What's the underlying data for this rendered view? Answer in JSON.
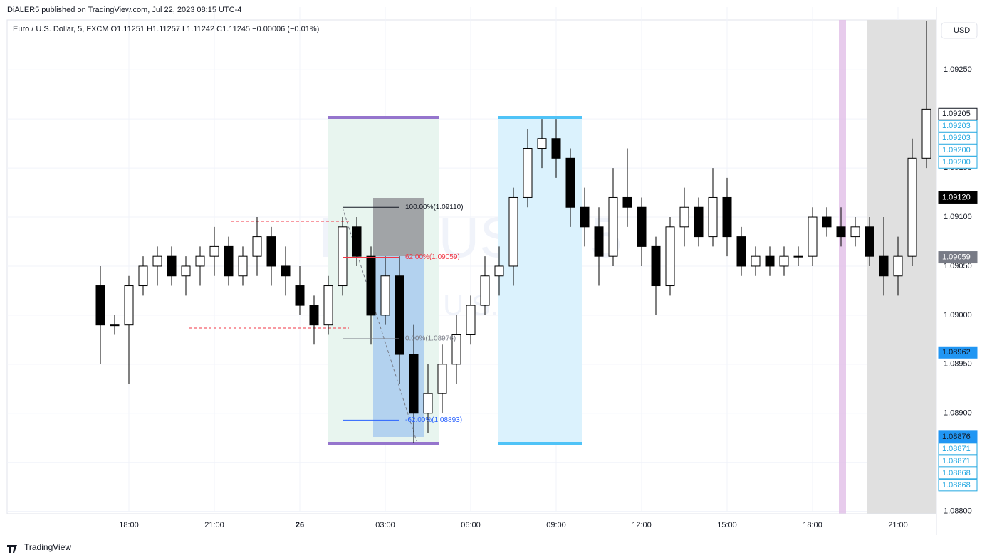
{
  "header": {
    "published": "DiALER5 published on TradingView.com, Jul 22, 2023 08:15 UTC-4",
    "symbol_line": "Euro / U.S. Dollar, 5, FXCM  O1.11251  H1.11257  L1.11242  C1.11245  −0.00006 (−0.01%)",
    "currency_button": "USD"
  },
  "footer": {
    "brand": "TradingView"
  },
  "chart_data": {
    "type": "candlestick",
    "watermark": "EURUSD, 5",
    "watermark_subtitle": "Euro / U.S. Dollar",
    "up_color": "#ffffff",
    "down_color": "#000000",
    "wick_color": "#000000",
    "grid": true,
    "xlim": [
      13.725,
      46.35
    ],
    "ylim": [
      1.08799,
      1.09314
    ],
    "xticks": [
      {
        "value": 18,
        "label": "18:00"
      },
      {
        "value": 21,
        "label": "21:00"
      },
      {
        "value": 24,
        "label": "26"
      },
      {
        "value": 27,
        "label": "03:00"
      },
      {
        "value": 30,
        "label": "06:00"
      },
      {
        "value": 33,
        "label": "09:00"
      },
      {
        "value": 36,
        "label": "12:00"
      },
      {
        "value": 39,
        "label": "15:00"
      },
      {
        "value": 42,
        "label": "18:00"
      },
      {
        "value": 45,
        "label": "21:00"
      }
    ],
    "yticks": [
      {
        "value": 1.088,
        "label": "1.08800"
      },
      {
        "value": 1.0885,
        "label": "1.08850"
      },
      {
        "value": 1.089,
        "label": "1.08900"
      },
      {
        "value": 1.0895,
        "label": "1.08950"
      },
      {
        "value": 1.09,
        "label": "1.09000"
      },
      {
        "value": 1.0905,
        "label": "1.09050"
      },
      {
        "value": 1.091,
        "label": "1.09100"
      },
      {
        "value": 1.0915,
        "label": "1.09150"
      },
      {
        "value": 1.092,
        "label": "1.09200"
      },
      {
        "value": 1.0925,
        "label": "1.09250"
      }
    ],
    "x": [
      17,
      17.5,
      18,
      18.5,
      19,
      19.5,
      20,
      20.5,
      21,
      21.5,
      22,
      22.5,
      23,
      23.5,
      24,
      24.5,
      25,
      25.5,
      26,
      26.5,
      27,
      27.5,
      28,
      28.5,
      29,
      29.5,
      30,
      30.5,
      31,
      31.5,
      32,
      32.5,
      33,
      33.5,
      34,
      34.5,
      35,
      35.5,
      36,
      36.5,
      37,
      37.5,
      38,
      38.5,
      39,
      39.5,
      40,
      40.5,
      41,
      41.5,
      42,
      42.5,
      43,
      43.5,
      44,
      44.5,
      45,
      45.5,
      46
    ],
    "open": [
      1.0903,
      1.0899,
      1.0899,
      1.0903,
      1.0905,
      1.0906,
      1.0904,
      1.0905,
      1.0906,
      1.0907,
      1.0904,
      1.0906,
      1.0908,
      1.0905,
      1.0903,
      1.0901,
      1.0899,
      1.0903,
      1.0909,
      1.0906,
      1.09,
      1.0904,
      1.0896,
      1.089,
      1.0892,
      1.0895,
      1.0898,
      1.0901,
      1.0904,
      1.0905,
      1.0912,
      1.0917,
      1.0918,
      1.0916,
      1.0911,
      1.0909,
      1.0906,
      1.0912,
      1.0911,
      1.0907,
      1.0903,
      1.0909,
      1.0911,
      1.0908,
      1.0912,
      1.0908,
      1.0905,
      1.0906,
      1.0905,
      1.0906,
      1.0906,
      1.091,
      1.0909,
      1.0908,
      1.0909,
      1.0906,
      1.0904,
      1.0906,
      1.0916
    ],
    "high": [
      1.0905,
      1.09,
      1.0904,
      1.0906,
      1.0907,
      1.0907,
      1.0906,
      1.0907,
      1.0909,
      1.0908,
      1.0907,
      1.091,
      1.0909,
      1.0907,
      1.0905,
      1.0902,
      1.0904,
      1.091,
      1.091,
      1.0907,
      1.0906,
      1.0906,
      1.0899,
      1.0895,
      1.0897,
      1.09,
      1.0902,
      1.0906,
      1.0907,
      1.0913,
      1.0919,
      1.092,
      1.092,
      1.0917,
      1.0913,
      1.0911,
      1.0915,
      1.0917,
      1.0912,
      1.0908,
      1.091,
      1.0913,
      1.0912,
      1.0915,
      1.0914,
      1.0909,
      1.0907,
      1.0907,
      1.0907,
      1.0907,
      1.0911,
      1.0911,
      1.0911,
      1.091,
      1.091,
      1.091,
      1.0908,
      1.0918,
      1.093
    ],
    "low": [
      1.0895,
      1.0898,
      1.0893,
      1.0902,
      1.0903,
      1.0903,
      1.0902,
      1.0903,
      1.0904,
      1.0903,
      1.0903,
      1.0904,
      1.0903,
      1.0902,
      1.09,
      1.0897,
      1.0898,
      1.0902,
      1.0905,
      1.0897,
      1.0899,
      1.0893,
      1.0887,
      1.0888,
      1.089,
      1.0893,
      1.0897,
      1.09,
      1.0902,
      1.0903,
      1.0911,
      1.0915,
      1.0914,
      1.0909,
      1.0907,
      1.0903,
      1.0905,
      1.0909,
      1.0905,
      1.09,
      1.0902,
      1.0907,
      1.0907,
      1.0907,
      1.0906,
      1.0904,
      1.0904,
      1.0904,
      1.0904,
      1.0905,
      1.0905,
      1.0908,
      1.0907,
      1.0907,
      1.0905,
      1.0902,
      1.0902,
      1.0905,
      1.0915
    ],
    "close": [
      1.0899,
      1.0899,
      1.0903,
      1.0905,
      1.0906,
      1.0904,
      1.0905,
      1.0906,
      1.0907,
      1.0904,
      1.0906,
      1.0908,
      1.0905,
      1.0904,
      1.0901,
      1.0899,
      1.0903,
      1.0909,
      1.0906,
      1.09,
      1.0904,
      1.0896,
      1.089,
      1.0892,
      1.0895,
      1.0898,
      1.0901,
      1.0904,
      1.0905,
      1.0912,
      1.0917,
      1.0918,
      1.0916,
      1.0911,
      1.0909,
      1.0906,
      1.0912,
      1.0911,
      1.0907,
      1.0903,
      1.0909,
      1.0911,
      1.0908,
      1.0912,
      1.0908,
      1.0905,
      1.0906,
      1.0905,
      1.0906,
      1.0906,
      1.091,
      1.0909,
      1.0908,
      1.0909,
      1.0906,
      1.0904,
      1.0906,
      1.0916,
      1.0921
    ],
    "fib_levels": [
      {
        "value": 1.0911,
        "label": "100.00%(1.09110)",
        "color": "#131722"
      },
      {
        "value": 1.09059,
        "label": "62.00%(1.09059)",
        "color": "#f23645"
      },
      {
        "value": 1.08976,
        "label": "0.00%(1.08976)",
        "color": "#787b86"
      },
      {
        "value": 1.08893,
        "label": "-62.00%(1.08893)",
        "color": "#2962ff"
      }
    ],
    "price_labels": [
      {
        "value": 1.09205,
        "label": "1.09205",
        "bg": "#ffffff",
        "fg": "#131722",
        "border": "#131722"
      },
      {
        "value": 1.09203,
        "label": "1.09203",
        "bg": "#ffffff",
        "fg": "#22a7e0",
        "border": "#22a7e0"
      },
      {
        "value": 1.09203,
        "label": "1.09203",
        "bg": "#ffffff",
        "fg": "#22a7e0",
        "border": "#22a7e0"
      },
      {
        "value": 1.092,
        "label": "1.09200",
        "bg": "#ffffff",
        "fg": "#22a7e0",
        "border": "#22a7e0"
      },
      {
        "value": 1.092,
        "label": "1.09200",
        "bg": "#ffffff",
        "fg": "#22a7e0",
        "border": "#22a7e0"
      },
      {
        "value": 1.0912,
        "label": "1.09120",
        "bg": "#000000",
        "fg": "#ffffff",
        "border": "#000000"
      },
      {
        "value": 1.09059,
        "label": "1.09059",
        "bg": "#787b86",
        "fg": "#ffffff",
        "border": "#787b86"
      },
      {
        "value": 1.08962,
        "label": "1.08962",
        "bg": "#2196f3",
        "fg": "#131722",
        "border": "#2196f3"
      },
      {
        "value": 1.08876,
        "label": "1.08876",
        "bg": "#2196f3",
        "fg": "#131722",
        "border": "#2196f3"
      },
      {
        "value": 1.08871,
        "label": "1.08871",
        "bg": "#ffffff",
        "fg": "#22a7e0",
        "border": "#22a7e0"
      },
      {
        "value": 1.08871,
        "label": "1.08871",
        "bg": "#ffffff",
        "fg": "#22a7e0",
        "border": "#22a7e0"
      },
      {
        "value": 1.08868,
        "label": "1.08868",
        "bg": "#ffffff",
        "fg": "#22a7e0",
        "border": "#22a7e0"
      },
      {
        "value": 1.08868,
        "label": "1.08868",
        "bg": "#ffffff",
        "fg": "#22a7e0",
        "border": "#22a7e0"
      }
    ]
  }
}
